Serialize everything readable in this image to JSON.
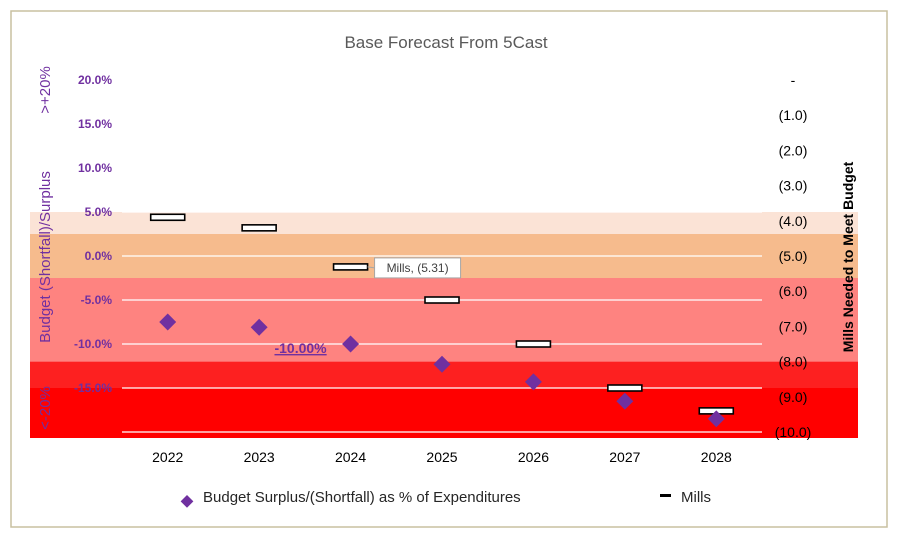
{
  "chart_data": {
    "type": "scatter",
    "title": "Base Forecast From 5Cast",
    "categories": [
      "2022",
      "2023",
      "2024",
      "2025",
      "2026",
      "2027",
      "2028"
    ],
    "left_axis": {
      "label": "Budget (Shortfall)/Surplus",
      "ticks": [
        "20.0%",
        "15.0%",
        "10.0%",
        "5.0%",
        "0.0%",
        "-5.0%",
        "-10.0%",
        "-15.0%"
      ],
      "range": [
        -20,
        20
      ]
    },
    "right_axis": {
      "label": "Mills Needed to Meet Budget",
      "ticks": [
        "-",
        "(1.0)",
        "(2.0)",
        "(3.0)",
        "(4.0)",
        "(5.0)",
        "(6.0)",
        "(7.0)",
        "(8.0)",
        "(9.0)",
        "(10.0)"
      ],
      "range": [
        -10,
        0
      ]
    },
    "bands": [
      {
        "from": 2.5,
        "to": 5.0,
        "color": "#fbe3d6"
      },
      {
        "from": -2.5,
        "to": 2.5,
        "color": "#f6bb8d"
      },
      {
        "from": -12.0,
        "to": -2.5,
        "color": "#fe8380"
      },
      {
        "from": -15.0,
        "to": -12.0,
        "color": "#fd2020"
      },
      {
        "from": -21.0,
        "to": -15.0,
        "color": "#ff0000"
      }
    ],
    "band_labels": {
      "top": ">+20%",
      "bottom": "<-20%"
    },
    "series": [
      {
        "name": "Budget Surplus/(Shortfall) as % of Expenditures",
        "marker": "diamond",
        "axis": "left",
        "color": "#7030a0",
        "values": [
          -7.5,
          -8.1,
          -10.0,
          -12.3,
          -14.3,
          -16.5,
          -18.5
        ]
      },
      {
        "name": "Mills",
        "marker": "dash",
        "axis": "right",
        "color": "#000000",
        "values": [
          -3.9,
          -4.2,
          -5.31,
          -6.25,
          -7.5,
          -8.75,
          -9.4
        ]
      }
    ],
    "annotations": [
      {
        "text": "-10.00%",
        "category": "2024",
        "series": 0
      },
      {
        "text": "Mills, (5.31)",
        "category": "2024",
        "series": 1
      }
    ],
    "legend": {
      "placement": "bottom"
    },
    "grid": true
  }
}
